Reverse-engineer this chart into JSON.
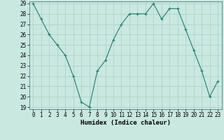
{
  "x": [
    0,
    1,
    2,
    3,
    4,
    5,
    6,
    7,
    8,
    9,
    10,
    11,
    12,
    13,
    14,
    15,
    16,
    17,
    18,
    19,
    20,
    21,
    22,
    23
  ],
  "y": [
    29,
    27.5,
    26,
    25,
    24,
    22,
    19.5,
    19,
    22.5,
    23.5,
    25.5,
    27,
    28,
    28,
    28,
    29,
    27.5,
    28.5,
    28.5,
    26.5,
    24.5,
    22.5,
    20,
    21.5
  ],
  "line_color": "#2a7a6a",
  "marker_color": "#2a7a6a",
  "bg_color": "#c8e8e0",
  "grid_color": "#aacfca",
  "xlabel": "Humidex (Indice chaleur)",
  "ylim": [
    19,
    29
  ],
  "xlim": [
    -0.5,
    23.5
  ],
  "yticks": [
    19,
    20,
    21,
    22,
    23,
    24,
    25,
    26,
    27,
    28,
    29
  ],
  "xticks": [
    0,
    1,
    2,
    3,
    4,
    5,
    6,
    7,
    8,
    9,
    10,
    11,
    12,
    13,
    14,
    15,
    16,
    17,
    18,
    19,
    20,
    21,
    22,
    23
  ],
  "tick_fontsize": 5.5,
  "label_fontsize": 6.5
}
